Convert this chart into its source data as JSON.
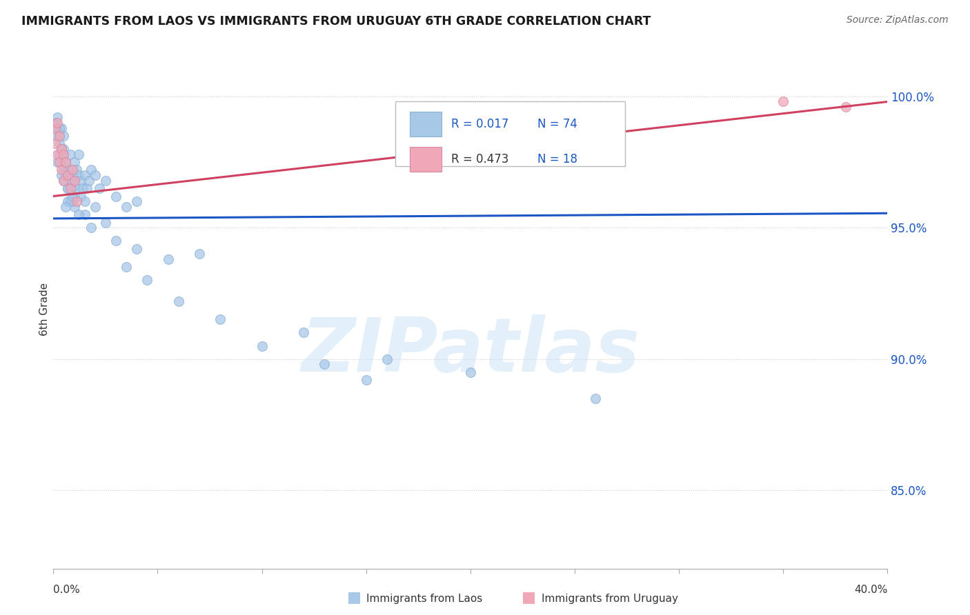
{
  "title": "IMMIGRANTS FROM LAOS VS IMMIGRANTS FROM URUGUAY 6TH GRADE CORRELATION CHART",
  "source": "Source: ZipAtlas.com",
  "ylabel": "6th Grade",
  "ytick_labels": [
    "100.0%",
    "95.0%",
    "90.0%",
    "85.0%"
  ],
  "ytick_values": [
    1.0,
    0.95,
    0.9,
    0.85
  ],
  "xmin": 0.0,
  "xmax": 0.4,
  "ymin": 0.82,
  "ymax": 1.018,
  "blue_color": "#a8c8e8",
  "pink_color": "#f0a8b8",
  "blue_line_color": "#1a56c4",
  "pink_line_color": "#d04060",
  "blue_r": "0.017",
  "blue_n": "74",
  "pink_r": "0.473",
  "pink_n": "18",
  "grid_color": "#cccccc",
  "watermark": "ZIPatlas",
  "blue_scatter_x": [
    0.001,
    0.001,
    0.002,
    0.002,
    0.003,
    0.003,
    0.003,
    0.004,
    0.004,
    0.004,
    0.005,
    0.005,
    0.005,
    0.005,
    0.006,
    0.006,
    0.007,
    0.007,
    0.007,
    0.008,
    0.008,
    0.009,
    0.009,
    0.009,
    0.01,
    0.01,
    0.01,
    0.01,
    0.011,
    0.011,
    0.012,
    0.012,
    0.013,
    0.013,
    0.014,
    0.015,
    0.015,
    0.016,
    0.017,
    0.018,
    0.02,
    0.022,
    0.025,
    0.03,
    0.035,
    0.015,
    0.02,
    0.025,
    0.04,
    0.055,
    0.03,
    0.07,
    0.04,
    0.12,
    0.035,
    0.16,
    0.045,
    0.2,
    0.06,
    0.26,
    0.08,
    0.13,
    0.1,
    0.15,
    0.018,
    0.012,
    0.008,
    0.006,
    0.003,
    0.005,
    0.002,
    0.004,
    0.007,
    0.009
  ],
  "blue_scatter_y": [
    0.99,
    0.985,
    0.992,
    0.988,
    0.985,
    0.978,
    0.982,
    0.988,
    0.975,
    0.98,
    0.985,
    0.978,
    0.972,
    0.968,
    0.975,
    0.97,
    0.972,
    0.965,
    0.96,
    0.978,
    0.968,
    0.97,
    0.965,
    0.96,
    0.975,
    0.968,
    0.962,
    0.958,
    0.972,
    0.965,
    0.978,
    0.97,
    0.968,
    0.962,
    0.965,
    0.97,
    0.96,
    0.965,
    0.968,
    0.972,
    0.97,
    0.965,
    0.968,
    0.962,
    0.958,
    0.955,
    0.958,
    0.952,
    0.96,
    0.938,
    0.945,
    0.94,
    0.942,
    0.91,
    0.935,
    0.9,
    0.93,
    0.895,
    0.922,
    0.885,
    0.915,
    0.898,
    0.905,
    0.892,
    0.95,
    0.955,
    0.96,
    0.958,
    0.988,
    0.98,
    0.975,
    0.97,
    0.965,
    0.962
  ],
  "pink_scatter_x": [
    0.001,
    0.001,
    0.002,
    0.002,
    0.003,
    0.003,
    0.004,
    0.004,
    0.005,
    0.005,
    0.006,
    0.007,
    0.008,
    0.009,
    0.01,
    0.011,
    0.35,
    0.38
  ],
  "pink_scatter_y": [
    0.988,
    0.982,
    0.99,
    0.978,
    0.985,
    0.975,
    0.98,
    0.972,
    0.978,
    0.968,
    0.975,
    0.97,
    0.965,
    0.972,
    0.968,
    0.96,
    0.998,
    0.996
  ],
  "blue_trendline_x": [
    0.0,
    0.4
  ],
  "blue_trendline_y": [
    0.9535,
    0.9555
  ],
  "pink_trendline_x": [
    0.0,
    0.4
  ],
  "pink_trendline_y": [
    0.962,
    0.998
  ]
}
